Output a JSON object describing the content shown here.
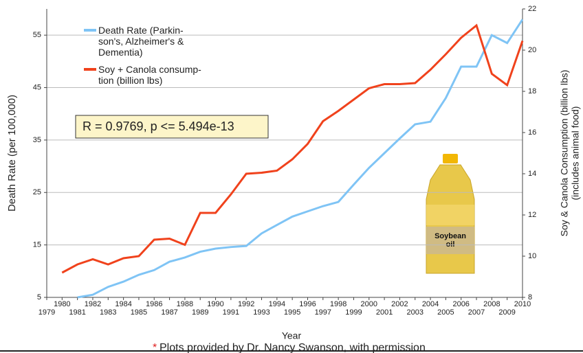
{
  "chart_data": {
    "type": "line",
    "x": [
      1980,
      1981,
      1982,
      1983,
      1984,
      1985,
      1986,
      1987,
      1988,
      1989,
      1990,
      1991,
      1992,
      1993,
      1994,
      1995,
      1996,
      1997,
      1998,
      1999,
      2000,
      2001,
      2002,
      2003,
      2004,
      2005,
      2006,
      2007,
      2008,
      2009,
      2010
    ],
    "series": [
      {
        "name": "Death Rate (Parkin-\nson's, Alzheimer's &\nDementia)",
        "color": "#7fc4f5",
        "values": [
          null,
          5,
          5.5,
          7,
          8,
          9.3,
          10.2,
          11.8,
          12.6,
          13.7,
          14.3,
          14.6,
          14.8,
          17.2,
          18.8,
          20.4,
          21.4,
          22.4,
          23.2,
          26.5,
          29.7,
          32.5,
          35.3,
          38,
          38.5,
          43,
          49,
          49,
          55,
          53.5,
          58
        ]
      },
      {
        "name": "Soy + Canola consump-\ntion (billion lbs)",
        "color": "#f0421c",
        "axis": "y2",
        "values": [
          9.2,
          9.6,
          9.85,
          9.6,
          9.9,
          10,
          10.8,
          10.85,
          10.55,
          12.1,
          12.1,
          13,
          14,
          14.05,
          14.15,
          14.7,
          15.45,
          16.55,
          17.05,
          17.6,
          18.15,
          18.35,
          18.35,
          18.4,
          19.05,
          19.8,
          20.6,
          21.2,
          18.85,
          18.3,
          20.45
        ]
      }
    ],
    "xlabel": "Year",
    "ylabel": "Death Rate (per 100,000)",
    "y2label": [
      "Soy & Canola Consumption (billion lbs)",
      "(includes animal food)"
    ],
    "xlim": [
      1979,
      2010
    ],
    "xticks": [
      1979,
      1980,
      1981,
      1982,
      1983,
      1984,
      1985,
      1986,
      1987,
      1988,
      1989,
      1990,
      1991,
      1992,
      1993,
      1994,
      1995,
      1996,
      1997,
      1998,
      1999,
      2000,
      2001,
      2002,
      2003,
      2004,
      2005,
      2006,
      2007,
      2008,
      2009,
      2010
    ],
    "ylim": [
      5,
      60
    ],
    "yticks": [
      5,
      15,
      25,
      35,
      45,
      55
    ],
    "y2lim": [
      8,
      22
    ],
    "y2ticks": [
      8,
      10,
      12,
      14,
      16,
      18,
      20,
      22
    ],
    "grid": true,
    "annotation": "R = 0.9769, p <= 5.494e-13",
    "image_label": "Soybean\noil",
    "footnote_mark": "*",
    "footnote": "Plots provided by Dr. Nancy Swanson, with permission"
  }
}
